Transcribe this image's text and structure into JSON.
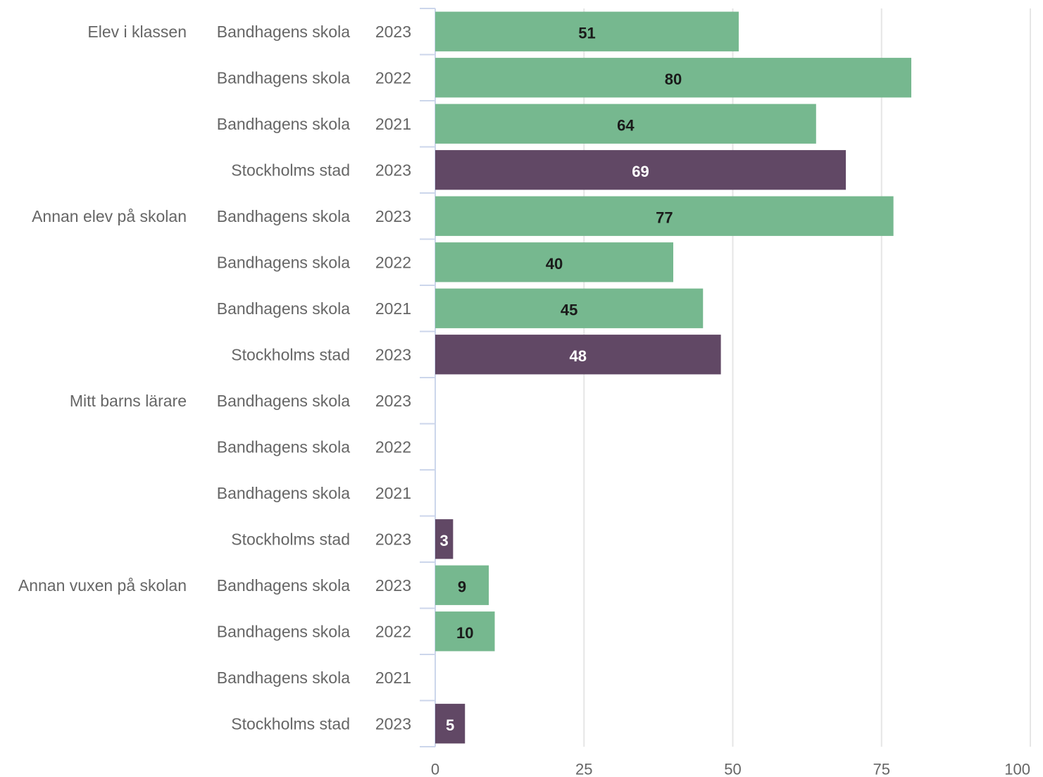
{
  "chart_data": {
    "type": "bar",
    "orientation": "horizontal",
    "colors": {
      "Bandhagens skola": "#76b88f",
      "Stockholms stad": "#614865"
    },
    "xlim": [
      0,
      100
    ],
    "x_ticks": [
      "0",
      "25",
      "50",
      "75",
      "100"
    ],
    "grid": true,
    "groups": [
      {
        "label": "Elev i klassen",
        "rows": [
          {
            "unit": "Bandhagens skola",
            "year": "2023",
            "value": 51,
            "label": "51"
          },
          {
            "unit": "Bandhagens skola",
            "year": "2022",
            "value": 80,
            "label": "80"
          },
          {
            "unit": "Bandhagens skola",
            "year": "2021",
            "value": 64,
            "label": "64"
          },
          {
            "unit": "Stockholms stad",
            "year": "2023",
            "value": 69,
            "label": "69"
          }
        ]
      },
      {
        "label": "Annan elev på skolan",
        "rows": [
          {
            "unit": "Bandhagens skola",
            "year": "2023",
            "value": 77,
            "label": "77"
          },
          {
            "unit": "Bandhagens skola",
            "year": "2022",
            "value": 40,
            "label": "40"
          },
          {
            "unit": "Bandhagens skola",
            "year": "2021",
            "value": 45,
            "label": "45"
          },
          {
            "unit": "Stockholms stad",
            "year": "2023",
            "value": 48,
            "label": "48"
          }
        ]
      },
      {
        "label": "Mitt barns lärare",
        "rows": [
          {
            "unit": "Bandhagens skola",
            "year": "2023",
            "value": null,
            "label": ""
          },
          {
            "unit": "Bandhagens skola",
            "year": "2022",
            "value": null,
            "label": ""
          },
          {
            "unit": "Bandhagens skola",
            "year": "2021",
            "value": null,
            "label": ""
          },
          {
            "unit": "Stockholms stad",
            "year": "2023",
            "value": 3,
            "label": "3"
          }
        ]
      },
      {
        "label": "Annan vuxen på skolan",
        "rows": [
          {
            "unit": "Bandhagens skola",
            "year": "2023",
            "value": 9,
            "label": "9"
          },
          {
            "unit": "Bandhagens skola",
            "year": "2022",
            "value": 10,
            "label": "10"
          },
          {
            "unit": "Bandhagens skola",
            "year": "2021",
            "value": null,
            "label": ""
          },
          {
            "unit": "Stockholms stad",
            "year": "2023",
            "value": 5,
            "label": "5"
          }
        ]
      }
    ]
  }
}
